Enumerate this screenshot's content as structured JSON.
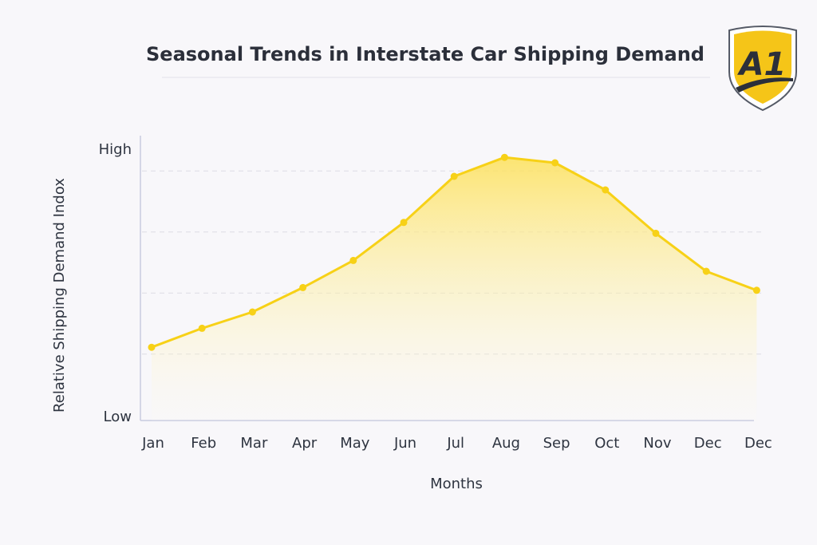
{
  "chart_data": {
    "type": "area",
    "title": "Seasonal Trends in Interstate Car Shipping Demand",
    "xlabel": "Months",
    "ylabel": "Relative Shipping Demand Indox",
    "categories": [
      "Jan",
      "Feb",
      "Mar",
      "Apr",
      "May",
      "Jun",
      "Jul",
      "Aug",
      "Sep",
      "Oct",
      "Nov",
      "Dec",
      "Dec"
    ],
    "values": [
      27,
      34,
      40,
      49,
      59,
      73,
      90,
      97,
      95,
      85,
      69,
      55,
      48
    ],
    "ylim": [
      0,
      100
    ],
    "ytick_labels": {
      "low": "Low",
      "high": "High"
    },
    "grid": true,
    "legend": "none",
    "colors": {
      "line": "#f7d117",
      "fill": "#fde15a",
      "text": "#2b2f3a",
      "axis": "#c8cbe0"
    }
  },
  "logo": {
    "text": "A1",
    "colors": {
      "shield": "#f5c518",
      "mark": "#2b2f3a"
    }
  }
}
